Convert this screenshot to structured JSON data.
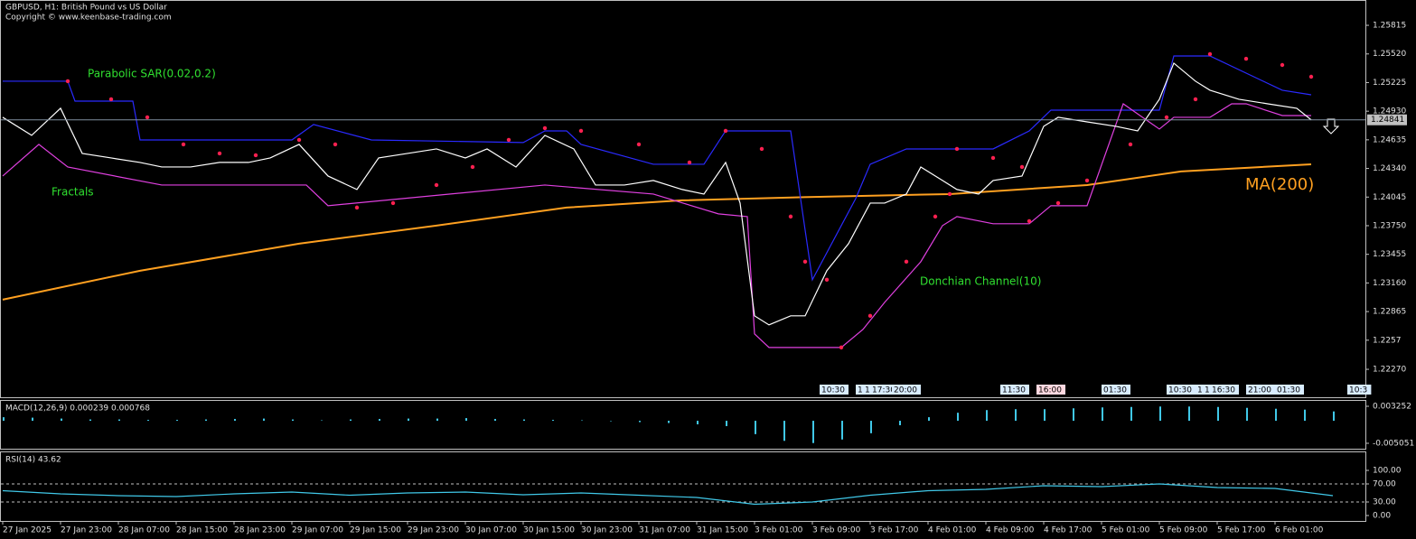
{
  "chart_data": [
    {
      "type": "line",
      "title": "GBPUSD, H1:  British Pound vs US Dollar",
      "subtitle": "Copyright © www.keenbase-trading.com",
      "color": "#ffffff",
      "x": [
        0,
        4,
        8,
        11,
        15,
        19,
        22,
        26,
        30,
        34,
        37,
        41,
        45,
        49,
        52,
        56,
        60,
        64,
        67,
        71,
        75,
        79,
        82,
        86,
        90,
        94,
        97,
        100,
        102,
        104,
        106,
        109,
        111,
        114,
        117,
        120,
        122,
        125,
        127,
        130,
        132,
        135,
        137,
        141,
        144,
        146,
        150,
        154,
        157,
        160,
        162,
        165,
        167,
        171,
        175,
        179,
        181
      ],
      "values": [
        1.24867,
        1.24681,
        1.2496,
        1.24495,
        1.24448,
        1.24402,
        1.24355,
        1.24355,
        1.24402,
        1.24402,
        1.24448,
        1.24588,
        1.24262,
        1.24123,
        1.24448,
        1.24495,
        1.24541,
        1.24448,
        1.24541,
        1.24355,
        1.24681,
        1.24541,
        1.24169,
        1.24169,
        1.24216,
        1.24123,
        1.24076,
        1.24402,
        1.23983,
        1.22821,
        1.22728,
        1.22821,
        1.22821,
        1.23286,
        1.23565,
        1.23983,
        1.23983,
        1.24076,
        1.24355,
        1.24216,
        1.24123,
        1.24076,
        1.24216,
        1.24262,
        1.24774,
        1.24867,
        1.2482,
        1.24774,
        1.24727,
        1.25053,
        1.25425,
        1.25239,
        1.25146,
        1.25053,
        1.25006,
        1.2496,
        1.24841
      ],
      "last_price": 1.24841,
      "xlim": [
        0,
        188
      ],
      "ylim": [
        1.21982,
        1.26048
      ],
      "yticks": [
        1.25815,
        {
          "value": 1.2552,
          "label": "1.25520"
        },
        1.25225,
        {
          "value": 1.2493,
          "label": "1.24930"
        },
        1.24635,
        {
          "value": 1.2434,
          "label": "1.24340"
        },
        1.24045,
        {
          "value": 1.2375,
          "label": "1.23750"
        },
        1.23455,
        {
          "value": 1.2316,
          "label": "1.23160"
        },
        1.22865,
        1.2257,
        {
          "value": 1.2227,
          "label": "1.22270"
        }
      ],
      "xticks": [
        {
          "value": 0,
          "label": "27 Jan 2025"
        },
        {
          "value": 8,
          "label": "27 Jan 23:00"
        },
        {
          "value": 16,
          "label": "28 Jan 07:00"
        },
        {
          "value": 24,
          "label": "28 Jan 15:00"
        },
        {
          "value": 32,
          "label": "28 Jan 23:00"
        },
        {
          "value": 40,
          "label": "29 Jan 07:00"
        },
        {
          "value": 48,
          "label": "29 Jan 15:00"
        },
        {
          "value": 56,
          "label": "29 Jan 23:00"
        },
        {
          "value": 64,
          "label": "30 Jan 07:00"
        },
        {
          "value": 72,
          "label": "30 Jan 15:00"
        },
        {
          "value": 80,
          "label": "30 Jan 23:00"
        },
        {
          "value": 88,
          "label": "31 Jan 07:00"
        },
        {
          "value": 96,
          "label": "31 Jan 15:00"
        },
        {
          "value": 104,
          "label": "3 Feb 01:00"
        },
        {
          "value": 112,
          "label": "3 Feb 09:00"
        },
        {
          "value": 120,
          "label": "3 Feb 17:00"
        },
        {
          "value": 128,
          "label": "4 Feb 01:00"
        },
        {
          "value": 136,
          "label": "4 Feb 09:00"
        },
        {
          "value": 144,
          "label": "4 Feb 17:00"
        },
        {
          "value": 152,
          "label": "5 Feb 01:00"
        },
        {
          "value": 160,
          "label": "5 Feb 09:00"
        },
        {
          "value": 168,
          "label": "5 Feb 17:00"
        },
        {
          "value": 176,
          "label": "6 Feb 01:00"
        }
      ],
      "ma": {
        "name": "MA(200)",
        "color": "#ffa020",
        "x": [
          0,
          19,
          41,
          60,
          78,
          94,
          113,
          131,
          150,
          163,
          181
        ],
        "values": [
          1.22988,
          1.23286,
          1.23565,
          1.23751,
          1.23937,
          1.24011,
          1.24048,
          1.24076,
          1.24169,
          1.24309,
          1.24383
        ]
      },
      "donchian": {
        "name": "Donchian Channel(10)",
        "upper": {
          "color": "#2a2aff",
          "x": [
            0,
            9,
            10,
            18,
            19,
            40,
            43,
            51,
            72,
            75,
            78,
            80,
            90,
            97,
            100,
            109,
            112,
            118,
            120,
            125,
            137,
            142,
            145,
            160,
            162,
            167,
            177,
            181
          ],
          "values": [
            1.25239,
            1.25239,
            1.25034,
            1.25034,
            1.24634,
            1.24634,
            1.24793,
            1.24634,
            1.24607,
            1.24727,
            1.24727,
            1.24588,
            1.24383,
            1.24383,
            1.24727,
            1.24727,
            1.23193,
            1.2403,
            1.24383,
            1.24541,
            1.24541,
            1.24727,
            1.24941,
            1.24941,
            1.25499,
            1.25499,
            1.25146,
            1.25099
          ]
        },
        "lower": {
          "color": "#e040e0",
          "x": [
            0,
            5,
            9,
            22,
            42,
            45,
            75,
            90,
            99,
            103,
            104,
            106,
            116,
            119,
            122,
            127,
            130,
            132,
            137,
            142,
            145,
            150,
            155,
            160,
            162,
            167,
            170,
            172,
            177,
            181
          ],
          "values": [
            1.24262,
            1.24588,
            1.24355,
            1.24169,
            1.24169,
            1.23956,
            1.24169,
            1.24076,
            1.23872,
            1.23844,
            1.22635,
            1.22495,
            1.22495,
            1.22681,
            1.2296,
            1.23379,
            1.23751,
            1.23844,
            1.2377,
            1.2377,
            1.23956,
            1.23956,
            1.25006,
            1.24746,
            1.24867,
            1.24867,
            1.25006,
            1.25006,
            1.24885,
            1.24885
          ]
        }
      },
      "sar": {
        "name": "Parabolic SAR(0.02,0.2)",
        "color": "#ff2050",
        "x": [
          9,
          15,
          20,
          25,
          30,
          35,
          41,
          46,
          49,
          54,
          60,
          65,
          70,
          75,
          80,
          88,
          95,
          100,
          105,
          109,
          111,
          114,
          116,
          120,
          125,
          129,
          131,
          132,
          137,
          141,
          142,
          146,
          150,
          156,
          161,
          165,
          167,
          172,
          177,
          181
        ],
        "values": [
          1.25239,
          1.25053,
          1.24867,
          1.24588,
          1.24495,
          1.24476,
          1.24634,
          1.24588,
          1.23937,
          1.23983,
          1.24169,
          1.24355,
          1.24634,
          1.24755,
          1.24727,
          1.24588,
          1.24402,
          1.24727,
          1.24541,
          1.23844,
          1.23379,
          1.23193,
          1.22495,
          1.22821,
          1.23379,
          1.23844,
          1.24076,
          1.24541,
          1.24448,
          1.24355,
          1.23797,
          1.23983,
          1.24216,
          1.24588,
          1.24867,
          1.25053,
          1.25518,
          1.25471,
          1.25406,
          1.25285
        ]
      },
      "annotations": [
        "Fractals"
      ],
      "events": [
        {
          "x": 113,
          "label": "10:30"
        },
        {
          "x": 118,
          "label": "1"
        },
        {
          "x": 119,
          "label": "1"
        },
        {
          "x": 120,
          "label": "17:30"
        },
        {
          "x": 123,
          "label": "20:00"
        },
        {
          "x": 138,
          "label": "11:30"
        },
        {
          "x": 143,
          "label": "16:00"
        },
        {
          "x": 152,
          "label": "01:30"
        },
        {
          "x": 161,
          "label": "10:30"
        },
        {
          "x": 165,
          "label": "1"
        },
        {
          "x": 166,
          "label": "1"
        },
        {
          "x": 167,
          "label": "16:30"
        },
        {
          "x": 172,
          "label": "21:00"
        },
        {
          "x": 176,
          "label": "01:30"
        },
        {
          "x": 186,
          "label": "10:3"
        }
      ]
    },
    {
      "type": "bar",
      "title": "MACD(12,26,9) 0.000239 0.000768",
      "color": "#40c8e8",
      "x": [
        0,
        4,
        8,
        12,
        16,
        20,
        24,
        28,
        32,
        36,
        40,
        44,
        48,
        52,
        56,
        60,
        64,
        68,
        72,
        76,
        80,
        84,
        88,
        92,
        96,
        100,
        104,
        108,
        112,
        116,
        120,
        124,
        128,
        132,
        136,
        140,
        144,
        148,
        152,
        156,
        160,
        164,
        168,
        172,
        176,
        180,
        184
      ],
      "values": [
        0.0008,
        0.0007,
        0.0005,
        0.0003,
        0.0003,
        0.0002,
        0.0002,
        0.0003,
        0.0004,
        0.0005,
        0.0003,
        0.0001,
        0.0003,
        0.0004,
        0.0005,
        0.0005,
        0.0006,
        0.0004,
        0.0003,
        0.0002,
        0.0001,
        -0.0001,
        -0.0003,
        -0.0005,
        -0.0008,
        -0.0012,
        -0.003,
        -0.0045,
        -0.005,
        -0.0042,
        -0.0028,
        -0.001,
        0.0008,
        0.0018,
        0.0024,
        0.0026,
        0.0026,
        0.0028,
        0.003,
        0.0031,
        0.0032,
        0.0032,
        0.0031,
        0.0029,
        0.0027,
        0.0025,
        0.0021
      ],
      "xlim": [
        0,
        188
      ],
      "ylim": [
        -0.00627,
        0.00467
      ],
      "yticks": [
        0.003252,
        -0.005051
      ]
    },
    {
      "type": "line",
      "title": "RSI(14) 43.62",
      "color": "#40c8e8",
      "x": [
        0,
        8,
        16,
        24,
        32,
        40,
        48,
        56,
        64,
        72,
        80,
        88,
        96,
        104,
        112,
        120,
        128,
        136,
        144,
        152,
        160,
        168,
        176,
        184
      ],
      "values": [
        55,
        48,
        44,
        42,
        48,
        52,
        45,
        50,
        52,
        46,
        50,
        45,
        40,
        25,
        30,
        45,
        55,
        58,
        66,
        64,
        70,
        62,
        60,
        44
      ],
      "xlim": [
        0,
        188
      ],
      "ylim": [
        -12,
        142
      ],
      "yticks": [
        {
          "value": 100,
          "label": "100.00"
        },
        {
          "value": 70,
          "label": "70.00"
        },
        {
          "value": 30,
          "label": "30.00"
        },
        {
          "value": 0,
          "label": "0.00"
        }
      ]
    }
  ]
}
